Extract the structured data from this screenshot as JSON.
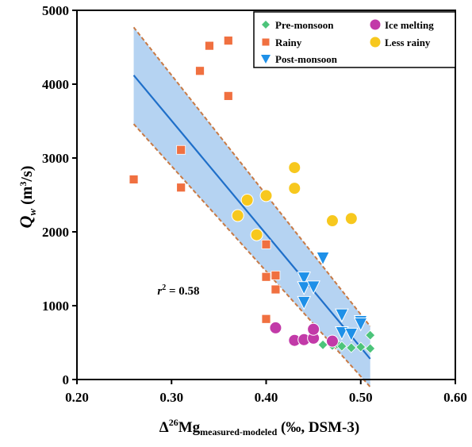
{
  "chart_data": {
    "type": "scatter",
    "xlabel": {
      "main": "Δ",
      "sup": "26",
      "element": "Mg",
      "sub": "measured-modeled",
      "suffix": " (‰, DSM-3)"
    },
    "ylabel": {
      "q": "Q",
      "sub": "w",
      "unit_pre": " (m",
      "unit_sup": "3",
      "unit_post": "/s)"
    },
    "xlim": [
      0.2,
      0.6
    ],
    "ylim": [
      0,
      5000
    ],
    "xticks": [
      0.2,
      0.3,
      0.4,
      0.5,
      0.6
    ],
    "xtick_labels": [
      "0.20",
      "0.30",
      "0.40",
      "0.50",
      "0.60"
    ],
    "yticks": [
      0,
      1000,
      2000,
      3000,
      4000,
      5000
    ],
    "ytick_labels": [
      "0",
      "1000",
      "2000",
      "3000",
      "4000",
      "5000"
    ],
    "grid": false,
    "legend_position": "top-right",
    "annotation": {
      "r": "r",
      "sup": "2",
      "rest": " = 0.58",
      "x": 0.285,
      "y": 1150
    },
    "series": [
      {
        "name": "Pre-monsoon",
        "marker": "diamond",
        "color": "#4cc47a",
        "points": [
          [
            0.46,
            470
          ],
          [
            0.47,
            460
          ],
          [
            0.475,
            480
          ],
          [
            0.48,
            450
          ],
          [
            0.49,
            430
          ],
          [
            0.5,
            440
          ],
          [
            0.51,
            420
          ],
          [
            0.51,
            600
          ]
        ]
      },
      {
        "name": "Rainy",
        "marker": "square",
        "color": "#f07040",
        "points": [
          [
            0.26,
            2710
          ],
          [
            0.31,
            3110
          ],
          [
            0.31,
            2600
          ],
          [
            0.33,
            4180
          ],
          [
            0.34,
            4520
          ],
          [
            0.36,
            4590
          ],
          [
            0.36,
            3840
          ],
          [
            0.4,
            1830
          ],
          [
            0.4,
            1390
          ],
          [
            0.41,
            1410
          ],
          [
            0.41,
            1220
          ],
          [
            0.4,
            820
          ]
        ]
      },
      {
        "name": "Post-monsoon",
        "marker": "triangle-down",
        "color": "#1e90e8",
        "points": [
          [
            0.46,
            1650
          ],
          [
            0.44,
            1380
          ],
          [
            0.44,
            1250
          ],
          [
            0.45,
            1260
          ],
          [
            0.44,
            1050
          ],
          [
            0.48,
            880
          ],
          [
            0.48,
            640
          ],
          [
            0.49,
            620
          ],
          [
            0.5,
            790
          ],
          [
            0.5,
            760
          ]
        ]
      },
      {
        "name": "Ice melting",
        "marker": "circle",
        "color": "#c23aa8",
        "points": [
          [
            0.41,
            700
          ],
          [
            0.43,
            530
          ],
          [
            0.44,
            540
          ],
          [
            0.45,
            560
          ],
          [
            0.45,
            680
          ],
          [
            0.47,
            520
          ]
        ]
      },
      {
        "name": "Less rainy",
        "marker": "circle",
        "color": "#f7c81e",
        "points": [
          [
            0.37,
            2220
          ],
          [
            0.38,
            2430
          ],
          [
            0.39,
            1960
          ],
          [
            0.4,
            2490
          ],
          [
            0.43,
            2870
          ],
          [
            0.43,
            2590
          ],
          [
            0.47,
            2150
          ],
          [
            0.49,
            2180
          ]
        ]
      }
    ],
    "fit": {
      "color": "#1f6fc9",
      "band_color": "#b5d3f2",
      "bound_color": "#c87a45",
      "line": [
        [
          0.26,
          4120
        ],
        [
          0.51,
          280
        ]
      ],
      "upper": [
        [
          0.26,
          4770
        ],
        [
          0.51,
          720
        ]
      ],
      "lower": [
        [
          0.26,
          3460
        ],
        [
          0.51,
          -100
        ]
      ]
    }
  }
}
